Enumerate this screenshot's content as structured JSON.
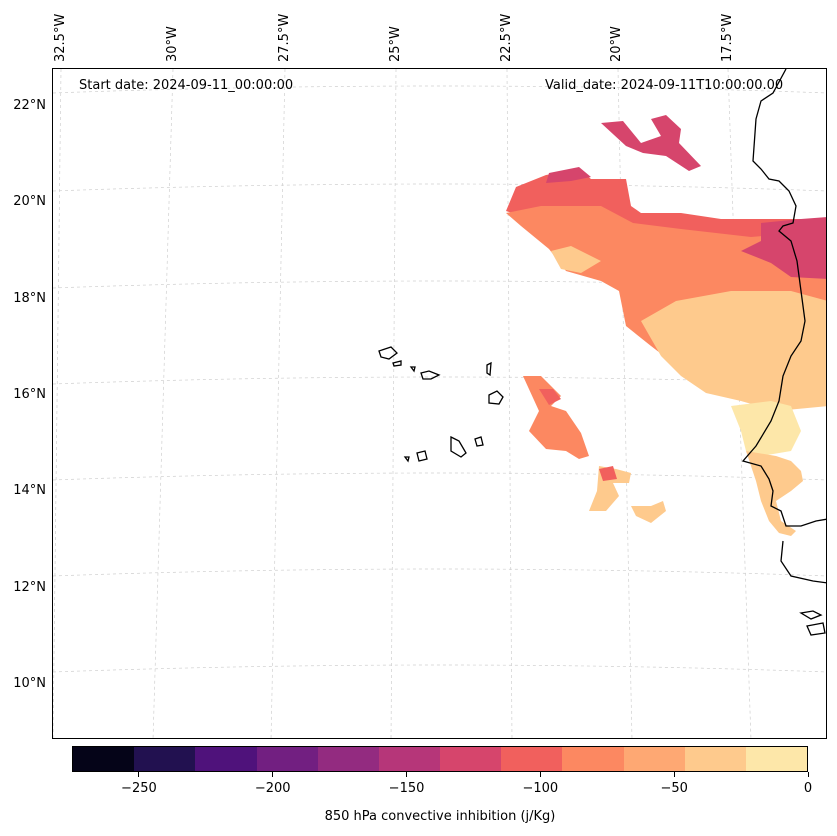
{
  "map": {
    "lon_labels": [
      "32.5°W",
      "30°W",
      "27.5°W",
      "25°W",
      "22.5°W",
      "20°W",
      "17.5°W"
    ],
    "lat_labels": [
      "22°N",
      "20°N",
      "18°N",
      "16°N",
      "14°N",
      "12°N",
      "10°N"
    ],
    "start_date": "Start date: 2024-09-11_00:00:00",
    "valid_date": "Valid_date: 2024-09-11T10:00:00.00",
    "field": "850 hPa convective inhibition",
    "units": "j/Kg"
  },
  "colorbar": {
    "title": "850 hPa convective inhibition (j/Kg)",
    "tick_labels": [
      "−250",
      "−200",
      "−150",
      "−100",
      "−50",
      "0"
    ],
    "tick_values": [
      -250,
      -200,
      -150,
      -100,
      -50,
      0
    ],
    "range": [
      -275,
      0
    ],
    "bins": [
      -275,
      -250,
      -225,
      -200,
      -175,
      -150,
      -125,
      -100,
      -75,
      -50,
      -25,
      0
    ],
    "colors": [
      "#050418",
      "#221150",
      "#4f127b",
      "#721f81",
      "#932b80",
      "#b63679",
      "#d6456c",
      "#f1605d",
      "#fc8861",
      "#fea873",
      "#feca8d",
      "#fde7a9"
    ]
  },
  "contour_levels": {
    "band1": "-150 to -125",
    "band2": "-125 to -100",
    "band3": "-100 to -75",
    "band4": "-75 to -50",
    "band5": "-50 to -25",
    "band6": "-25 to 0"
  }
}
